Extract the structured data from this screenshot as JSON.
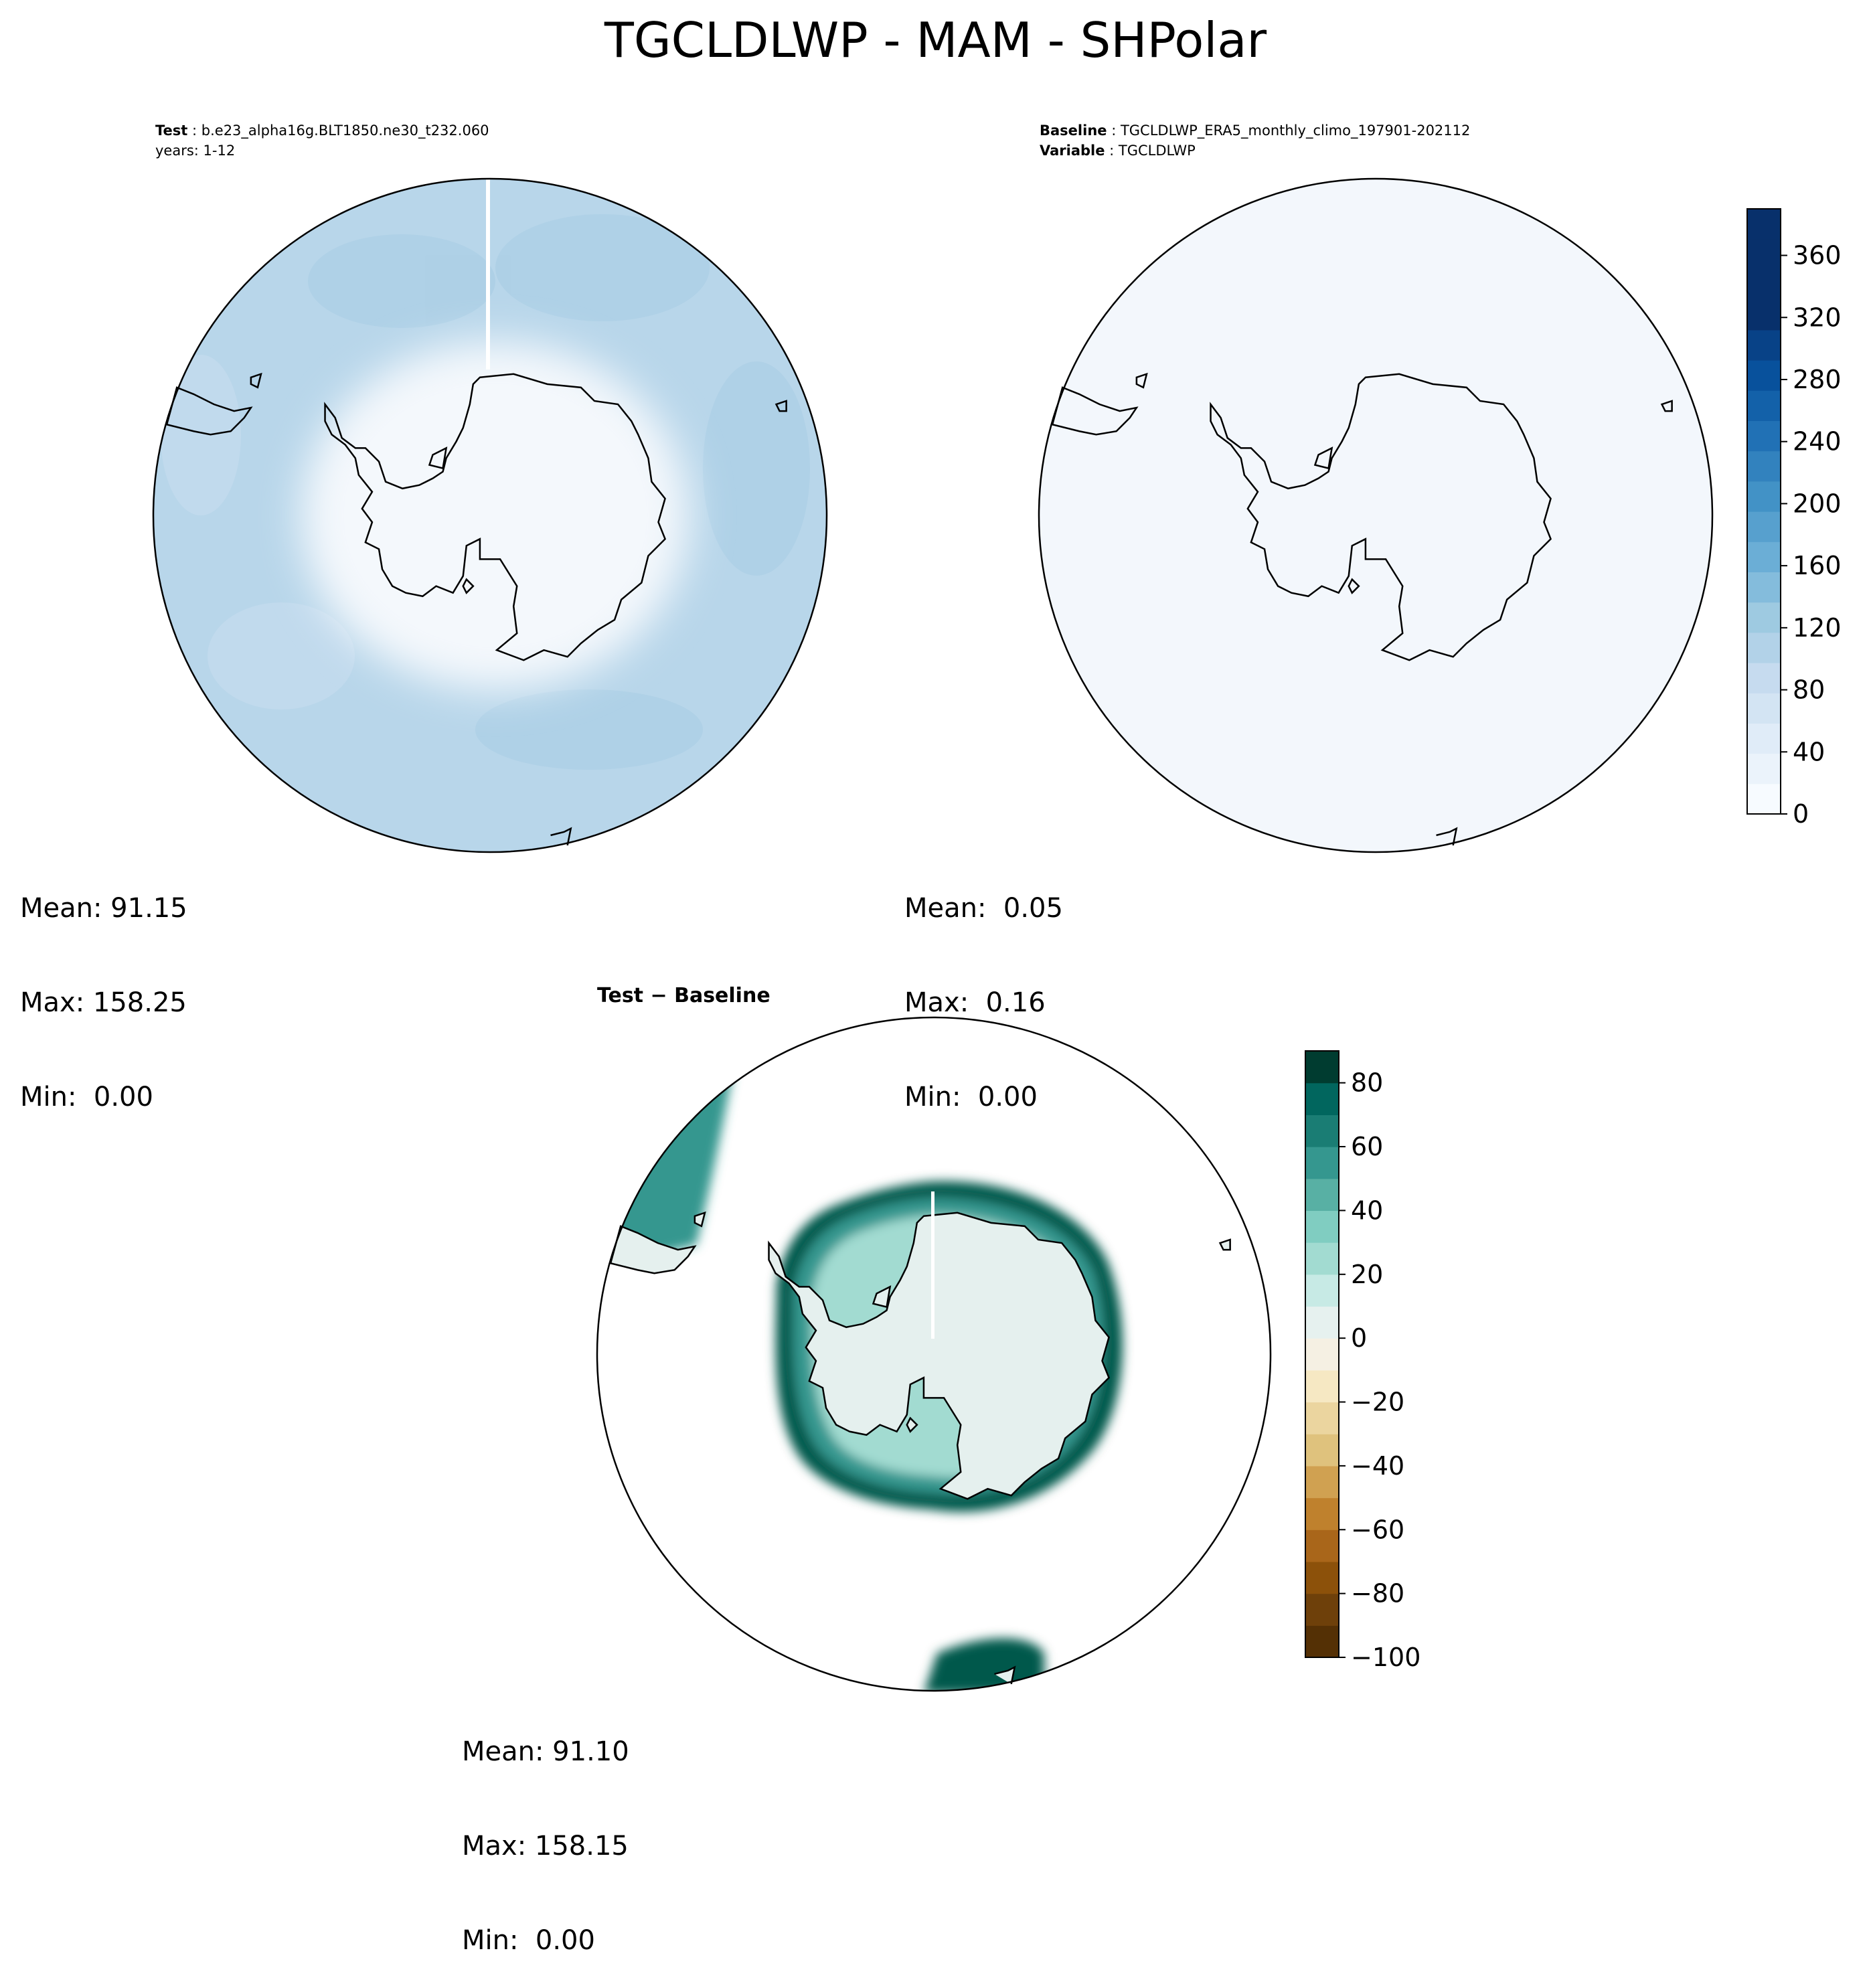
{
  "figure_title": "TGCLDLWP - MAM - SHPolar",
  "test_panel": {
    "label_key": "Test",
    "label_value": "b.e23_alpha16g.BLT1850.ne30_t232.060",
    "line2": "years: 1-12",
    "stats": {
      "mean": "Mean: 91.15",
      "max": "Max: 158.25",
      "min": "Min:  0.00"
    }
  },
  "baseline_panel": {
    "label_key": "Baseline",
    "label_value": "TGCLDLWP_ERA5_monthly_climo_197901-202112",
    "var_key": "Variable",
    "var_value": "TGCLDLWP",
    "stats": {
      "mean": "Mean:  0.05",
      "max": "Max:  0.16",
      "min": "Min:  0.00"
    }
  },
  "diff_panel": {
    "title_left": "Test",
    "title_op": "−",
    "title_right": "Baseline",
    "stats": {
      "mean": "Mean: 91.10",
      "max": "Max: 158.15",
      "min": "Min:  0.00"
    }
  },
  "colorbar_top": {
    "colormap": "Blues",
    "ticks": [
      "0",
      "40",
      "80",
      "120",
      "160",
      "200",
      "240",
      "280",
      "320",
      "360"
    ],
    "vmin": 0,
    "vmax": 390,
    "levels": 20,
    "colors": [
      "#f7fbff",
      "#ebf3fb",
      "#e0ecf8",
      "#d3e4f3",
      "#c6dbef",
      "#b2d2e8",
      "#9ecae1",
      "#84bcdc",
      "#6baed6",
      "#57a0ce",
      "#4292c6",
      "#3282be",
      "#2171b5",
      "#1361a9",
      "#08519c",
      "#084287",
      "#08306b",
      "#08306b",
      "#08306b",
      "#08306b"
    ]
  },
  "colorbar_diff": {
    "colormap": "BrBG",
    "ticks": [
      "−100",
      "−80",
      "−60",
      "−40",
      "−20",
      "0",
      "20",
      "40",
      "60",
      "80"
    ],
    "vmin": -100,
    "vmax": 90,
    "levels": 19,
    "colors": [
      "#543005",
      "#6e400a",
      "#8c510a",
      "#a9661a",
      "#bf812d",
      "#d0a151",
      "#dfc27d",
      "#ebd59f",
      "#f6e8c3",
      "#f5f0e3",
      "#e6f1ef",
      "#c7eae5",
      "#a2dbd1",
      "#80cdc1",
      "#58b0a4",
      "#35978f",
      "#1a7d74",
      "#01665e",
      "#003c30"
    ]
  },
  "colors": {
    "test_ocean": "#b8d6ea",
    "test_interior": "#f4f8fc",
    "baseline_fill": "#f3f7fc",
    "diff_land": "#e5f0ee",
    "diff_band_dark": "#00584c",
    "diff_band_mid": "#35978f",
    "diff_band_light": "#a2dbd1"
  }
}
